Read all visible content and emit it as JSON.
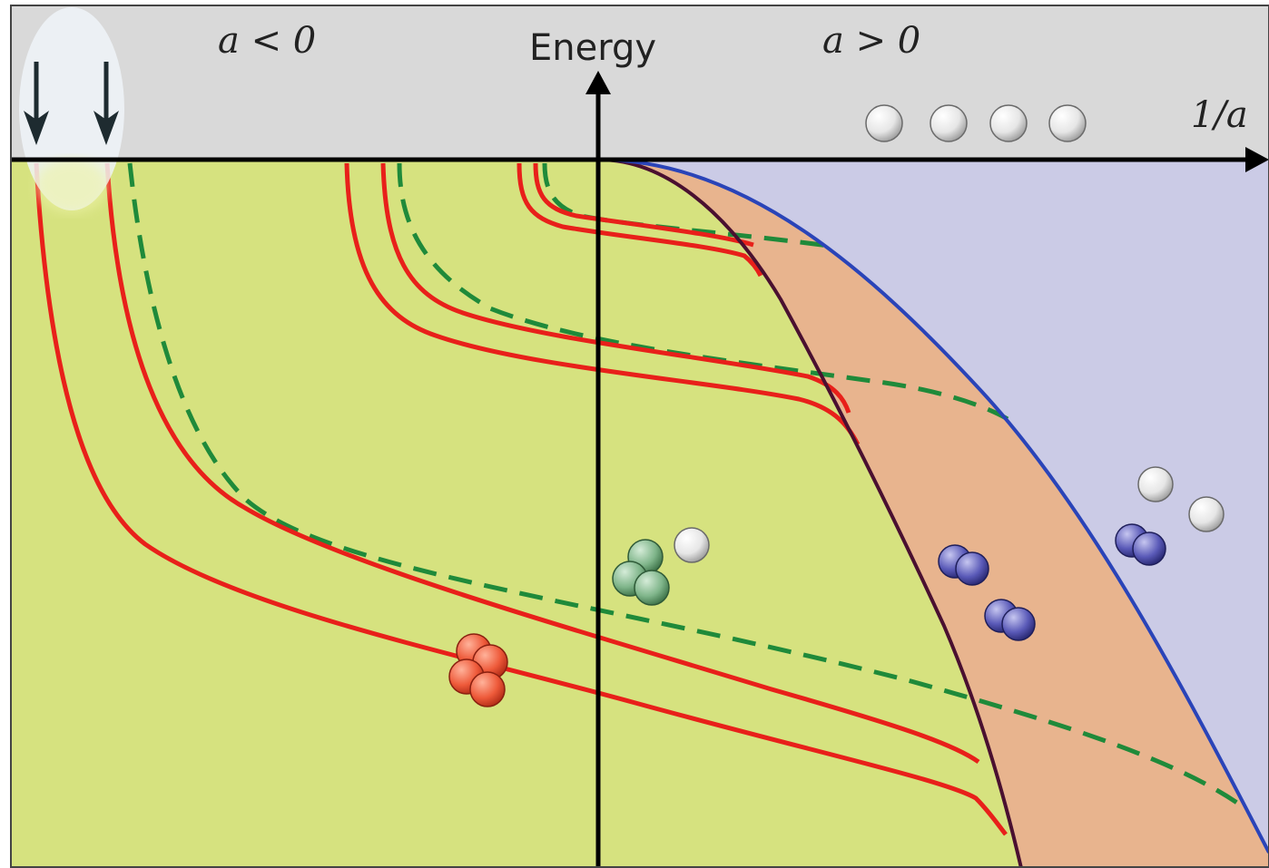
{
  "labels": {
    "a_negative": "a < 0",
    "a_positive": "a > 0",
    "energy_axis": "Energy",
    "inverse_a_axis": "1/a"
  },
  "colors": {
    "top_band": "#d9d9d9",
    "bound_region": "#d6e27f",
    "dimer_region": "#e8b48e",
    "continuum_region": "#cbcbe6",
    "red_curve": "#e8201a",
    "green_dashed": "#1f8a3a",
    "atom_dimer_threshold": "#4a1030",
    "dimer_threshold": "#2a44b8",
    "arrow": "#1e2b30",
    "highlight": "#e8f0f7"
  },
  "icons": [
    "down-arrow-icon",
    "atom-icon",
    "dimer-icon",
    "trimer-icon",
    "tetramer-icon"
  ]
}
